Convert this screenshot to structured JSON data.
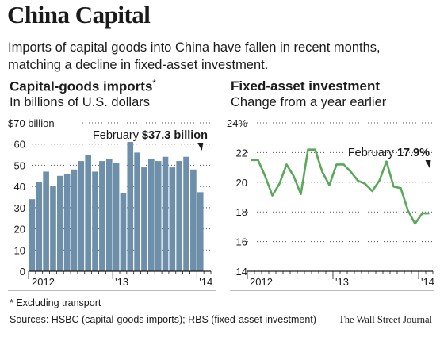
{
  "header": {
    "title": "China Capital",
    "subtitle": "Imports of capital goods into China have fallen in recent months, matching a decline in fixed-asset investment."
  },
  "footer": {
    "note": "* Excluding transport",
    "sources": "Sources: HSBC (capital-goods imports); RBS (fixed-asset investment)",
    "credit": "The Wall Street Journal"
  },
  "chart_data": [
    {
      "type": "bar",
      "title": "Capital-goods imports",
      "title_marker": "*",
      "subtitle": "In billions of U.S. dollars",
      "categories": [
        "2012-01",
        "2012-02",
        "2012-03",
        "2012-04",
        "2012-05",
        "2012-06",
        "2012-07",
        "2012-08",
        "2012-09",
        "2012-10",
        "2012-11",
        "2012-12",
        "2013-01",
        "2013-02",
        "2013-03",
        "2013-04",
        "2013-05",
        "2013-06",
        "2013-07",
        "2013-08",
        "2013-09",
        "2013-10",
        "2013-11",
        "2013-12",
        "2014-01",
        "2014-02"
      ],
      "values": [
        34,
        42,
        47,
        40,
        45,
        46,
        48,
        52,
        55,
        47,
        52,
        53,
        51,
        37,
        61,
        56,
        49,
        53,
        52,
        54,
        49,
        52,
        54,
        48,
        37.3,
        null
      ],
      "ylim": [
        0,
        70
      ],
      "yticks": [
        "$70 billion",
        "60",
        "50",
        "40",
        "30",
        "20",
        "10",
        "0"
      ],
      "xtick_labels": [
        "2012",
        "'13",
        "'14"
      ],
      "bar_color": "#6e8fa9",
      "annotation": {
        "label": "February",
        "value": "$37.3 billion"
      },
      "grid": "dotted horizontal"
    },
    {
      "type": "line",
      "title": "Fixed-asset investment",
      "subtitle": "Change from a year earlier",
      "x": [
        "2012-01",
        "2012-02",
        "2012-03",
        "2012-04",
        "2012-05",
        "2012-06",
        "2012-07",
        "2012-08",
        "2012-09",
        "2012-10",
        "2012-11",
        "2012-12",
        "2013-01",
        "2013-02",
        "2013-03",
        "2013-04",
        "2013-05",
        "2013-06",
        "2013-07",
        "2013-08",
        "2013-09",
        "2013-10",
        "2013-11",
        "2013-12",
        "2014-01",
        "2014-02"
      ],
      "values": [
        21.5,
        21.5,
        20.4,
        19.1,
        19.9,
        21.2,
        20.4,
        19.2,
        22.2,
        22.2,
        20.7,
        19.8,
        21.2,
        21.2,
        20.7,
        20.1,
        19.9,
        19.4,
        20.1,
        21.4,
        19.7,
        19.6,
        18.1,
        17.2,
        17.9,
        17.9
      ],
      "ylim": [
        14,
        24
      ],
      "yticks": [
        "24%",
        "22",
        "20",
        "18",
        "16",
        "14"
      ],
      "xtick_labels": [
        "2012",
        "'13",
        "'14"
      ],
      "line_color": "#5aa85a",
      "annotation": {
        "label": "February",
        "value": "17.9%"
      },
      "grid": "dotted horizontal"
    }
  ]
}
